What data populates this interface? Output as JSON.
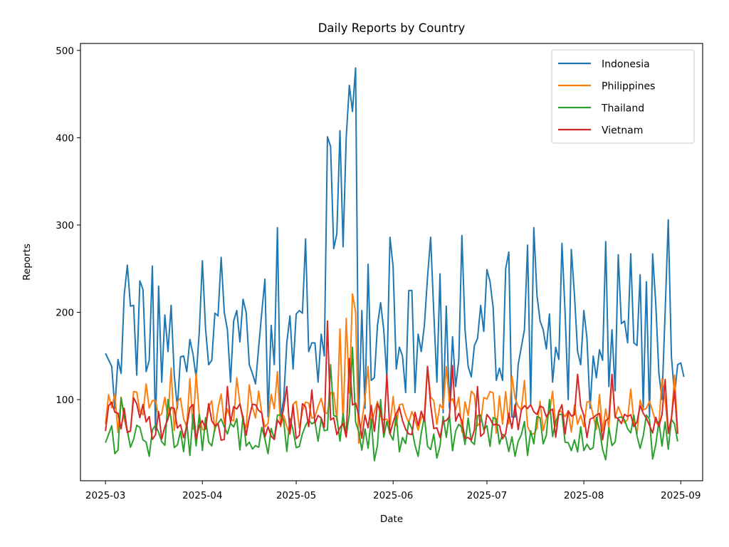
{
  "chart_data": {
    "type": "line",
    "title": "Daily Reports by Country",
    "xlabel": "Date",
    "ylabel": "Reports",
    "x_ticks": [
      "2025-03",
      "2025-04",
      "2025-05",
      "2025-06",
      "2025-07",
      "2025-08",
      "2025-09"
    ],
    "y_ticks": [
      100,
      200,
      300,
      400,
      500
    ],
    "xlim": [
      "2025-02-21",
      "2025-09-08"
    ],
    "ylim": [
      7,
      508
    ],
    "grid": false,
    "legend_position": "top-right",
    "x_start": "2025-03-01",
    "x_end": "2025-08-31",
    "series": [
      {
        "name": "Indonesia",
        "color": "#1f77b4",
        "key_points": [
          [
            "2025-03-01",
            153
          ],
          [
            "2025-03-03",
            138
          ],
          [
            "2025-03-04",
            90
          ],
          [
            "2025-03-05",
            146
          ],
          [
            "2025-03-06",
            130
          ],
          [
            "2025-03-07",
            220
          ],
          [
            "2025-03-08",
            254
          ],
          [
            "2025-03-09",
            207
          ],
          [
            "2025-03-10",
            208
          ],
          [
            "2025-03-11",
            128
          ],
          [
            "2025-03-12",
            236
          ],
          [
            "2025-03-13",
            226
          ],
          [
            "2025-03-14",
            132
          ],
          [
            "2025-03-15",
            145
          ],
          [
            "2025-03-16",
            253
          ],
          [
            "2025-03-17",
            65
          ],
          [
            "2025-03-18",
            230
          ],
          [
            "2025-03-19",
            120
          ],
          [
            "2025-03-20",
            197
          ],
          [
            "2025-03-21",
            155
          ],
          [
            "2025-03-22",
            208
          ],
          [
            "2025-03-23",
            128
          ],
          [
            "2025-03-24",
            90
          ],
          [
            "2025-03-25",
            149
          ],
          [
            "2025-03-26",
            150
          ],
          [
            "2025-03-27",
            132
          ],
          [
            "2025-03-28",
            169
          ],
          [
            "2025-03-29",
            152
          ],
          [
            "2025-03-30",
            125
          ],
          [
            "2025-03-31",
            177
          ],
          [
            "2025-04-01",
            259
          ],
          [
            "2025-04-02",
            182
          ],
          [
            "2025-04-03",
            140
          ],
          [
            "2025-04-04",
            145
          ],
          [
            "2025-04-05",
            199
          ],
          [
            "2025-04-06",
            196
          ],
          [
            "2025-04-07",
            263
          ],
          [
            "2025-04-08",
            200
          ],
          [
            "2025-04-09",
            180
          ],
          [
            "2025-04-10",
            120
          ],
          [
            "2025-04-11",
            190
          ],
          [
            "2025-04-12",
            202
          ],
          [
            "2025-04-13",
            166
          ],
          [
            "2025-04-14",
            215
          ],
          [
            "2025-04-15",
            200
          ],
          [
            "2025-04-16",
            140
          ],
          [
            "2025-04-17",
            130
          ],
          [
            "2025-04-18",
            118
          ],
          [
            "2025-04-19",
            160
          ],
          [
            "2025-04-20",
            200
          ],
          [
            "2025-04-21",
            238
          ],
          [
            "2025-04-22",
            80
          ],
          [
            "2025-04-23",
            185
          ],
          [
            "2025-04-24",
            140
          ],
          [
            "2025-04-25",
            297
          ],
          [
            "2025-04-26",
            80
          ],
          [
            "2025-04-27",
            100
          ],
          [
            "2025-04-28",
            165
          ],
          [
            "2025-04-29",
            196
          ],
          [
            "2025-04-30",
            135
          ],
          [
            "2025-05-01",
            198
          ],
          [
            "2025-05-02",
            202
          ],
          [
            "2025-05-03",
            199
          ],
          [
            "2025-05-04",
            284
          ],
          [
            "2025-05-05",
            155
          ],
          [
            "2025-05-06",
            165
          ],
          [
            "2025-05-07",
            165
          ],
          [
            "2025-05-08",
            120
          ],
          [
            "2025-05-09",
            175
          ],
          [
            "2025-05-10",
            150
          ],
          [
            "2025-05-11",
            401
          ],
          [
            "2025-05-12",
            390
          ],
          [
            "2025-05-13",
            273
          ],
          [
            "2025-05-14",
            290
          ],
          [
            "2025-05-15",
            408
          ],
          [
            "2025-05-16",
            275
          ],
          [
            "2025-05-17",
            400
          ],
          [
            "2025-05-18",
            460
          ],
          [
            "2025-05-19",
            430
          ],
          [
            "2025-05-20",
            480
          ],
          [
            "2025-05-21",
            80
          ],
          [
            "2025-05-22",
            202
          ],
          [
            "2025-05-23",
            90
          ],
          [
            "2025-05-24",
            255
          ],
          [
            "2025-05-25",
            122
          ],
          [
            "2025-05-26",
            125
          ],
          [
            "2025-05-27",
            185
          ],
          [
            "2025-05-28",
            211
          ],
          [
            "2025-05-29",
            180
          ],
          [
            "2025-05-30",
            125
          ],
          [
            "2025-05-31",
            286
          ],
          [
            "2025-06-01",
            252
          ],
          [
            "2025-06-02",
            135
          ],
          [
            "2025-06-03",
            160
          ],
          [
            "2025-06-04",
            150
          ],
          [
            "2025-06-05",
            108
          ],
          [
            "2025-06-06",
            225
          ],
          [
            "2025-06-07",
            225
          ],
          [
            "2025-06-08",
            108
          ],
          [
            "2025-06-09",
            175
          ],
          [
            "2025-06-10",
            155
          ],
          [
            "2025-06-11",
            185
          ],
          [
            "2025-06-12",
            240
          ],
          [
            "2025-06-13",
            286
          ],
          [
            "2025-06-14",
            200
          ],
          [
            "2025-06-15",
            120
          ],
          [
            "2025-06-16",
            244
          ],
          [
            "2025-06-17",
            85
          ],
          [
            "2025-06-18",
            207
          ],
          [
            "2025-06-19",
            90
          ],
          [
            "2025-06-20",
            172
          ],
          [
            "2025-06-21",
            115
          ],
          [
            "2025-06-22",
            145
          ],
          [
            "2025-06-23",
            288
          ],
          [
            "2025-06-24",
            180
          ],
          [
            "2025-06-25",
            138
          ],
          [
            "2025-06-26",
            126
          ],
          [
            "2025-06-27",
            162
          ],
          [
            "2025-06-28",
            170
          ],
          [
            "2025-06-29",
            208
          ],
          [
            "2025-06-30",
            178
          ],
          [
            "2025-07-01",
            249
          ],
          [
            "2025-07-02",
            235
          ],
          [
            "2025-07-03",
            205
          ],
          [
            "2025-07-04",
            122
          ],
          [
            "2025-07-05",
            136
          ],
          [
            "2025-07-06",
            122
          ],
          [
            "2025-07-07",
            250
          ],
          [
            "2025-07-08",
            269
          ],
          [
            "2025-07-09",
            80
          ],
          [
            "2025-07-10",
            80
          ],
          [
            "2025-07-11",
            140
          ],
          [
            "2025-07-12",
            160
          ],
          [
            "2025-07-13",
            180
          ],
          [
            "2025-07-14",
            277
          ],
          [
            "2025-07-15",
            95
          ],
          [
            "2025-07-16",
            297
          ],
          [
            "2025-07-17",
            220
          ],
          [
            "2025-07-18",
            190
          ],
          [
            "2025-07-19",
            180
          ],
          [
            "2025-07-20",
            158
          ],
          [
            "2025-07-21",
            198
          ],
          [
            "2025-07-22",
            120
          ],
          [
            "2025-07-23",
            160
          ],
          [
            "2025-07-24",
            146
          ],
          [
            "2025-07-25",
            279
          ],
          [
            "2025-07-26",
            200
          ],
          [
            "2025-07-27",
            100
          ],
          [
            "2025-07-28",
            272
          ],
          [
            "2025-07-29",
            220
          ],
          [
            "2025-07-30",
            155
          ],
          [
            "2025-07-31",
            140
          ],
          [
            "2025-08-01",
            202
          ],
          [
            "2025-08-02",
            170
          ],
          [
            "2025-08-03",
            90
          ],
          [
            "2025-08-04",
            150
          ],
          [
            "2025-08-05",
            125
          ],
          [
            "2025-08-06",
            157
          ],
          [
            "2025-08-07",
            145
          ],
          [
            "2025-08-08",
            281
          ],
          [
            "2025-08-09",
            115
          ],
          [
            "2025-08-10",
            180
          ],
          [
            "2025-08-11",
            110
          ],
          [
            "2025-08-12",
            266
          ],
          [
            "2025-08-13",
            187
          ],
          [
            "2025-08-14",
            190
          ],
          [
            "2025-08-15",
            165
          ],
          [
            "2025-08-16",
            267
          ],
          [
            "2025-08-17",
            165
          ],
          [
            "2025-08-18",
            162
          ],
          [
            "2025-08-19",
            243
          ],
          [
            "2025-08-20",
            90
          ],
          [
            "2025-08-21",
            235
          ],
          [
            "2025-08-22",
            80
          ],
          [
            "2025-08-23",
            267
          ],
          [
            "2025-08-24",
            210
          ],
          [
            "2025-08-25",
            130
          ],
          [
            "2025-08-26",
            100
          ],
          [
            "2025-08-27",
            200
          ],
          [
            "2025-08-28",
            306
          ],
          [
            "2025-08-29",
            150
          ],
          [
            "2025-08-30",
            105
          ],
          [
            "2025-08-31",
            140
          ],
          [
            "2025-09-01",
            142
          ],
          [
            "2025-09-02",
            126
          ]
        ]
      },
      {
        "name": "Philippines",
        "color": "#ff7f0e",
        "base": 85,
        "spread": 25,
        "seed": 7,
        "peaks": [
          [
            "2025-03-14",
            118
          ],
          [
            "2025-03-22",
            136
          ],
          [
            "2025-03-28",
            124
          ],
          [
            "2025-03-30",
            130
          ],
          [
            "2025-04-12",
            125
          ],
          [
            "2025-04-16",
            117
          ],
          [
            "2025-04-25",
            132
          ],
          [
            "2025-05-05",
            96
          ],
          [
            "2025-05-12",
            108
          ],
          [
            "2025-05-15",
            181
          ],
          [
            "2025-05-17",
            193
          ],
          [
            "2025-05-19",
            221
          ],
          [
            "2025-05-20",
            200
          ],
          [
            "2025-05-21",
            50
          ],
          [
            "2025-05-24",
            138
          ],
          [
            "2025-06-12",
            138
          ],
          [
            "2025-06-18",
            138
          ],
          [
            "2025-07-09",
            127
          ],
          [
            "2025-07-13",
            122
          ],
          [
            "2025-08-10",
            128
          ],
          [
            "2025-08-16",
            112
          ],
          [
            "2025-08-26",
            124
          ],
          [
            "2025-08-30",
            128
          ]
        ]
      },
      {
        "name": "Thailand",
        "color": "#2ca02c",
        "base": 62,
        "spread": 22,
        "seed": 13,
        "peaks": [
          [
            "2025-03-03",
            70
          ],
          [
            "2025-03-04",
            38
          ],
          [
            "2025-03-06",
            102
          ],
          [
            "2025-03-15",
            35
          ],
          [
            "2025-03-21",
            100
          ],
          [
            "2025-03-28",
            36
          ],
          [
            "2025-04-22",
            38
          ],
          [
            "2025-05-12",
            140
          ],
          [
            "2025-05-19",
            160
          ],
          [
            "2025-05-26",
            30
          ],
          [
            "2025-05-28",
            100
          ],
          [
            "2025-06-09",
            35
          ],
          [
            "2025-06-15",
            33
          ],
          [
            "2025-07-10",
            35
          ],
          [
            "2025-07-14",
            36
          ],
          [
            "2025-07-21",
            100
          ],
          [
            "2025-07-30",
            40
          ],
          [
            "2025-08-08",
            31
          ],
          [
            "2025-08-23",
            32
          ]
        ]
      },
      {
        "name": "Vietnam",
        "color": "#d62728",
        "base": 75,
        "spread": 22,
        "seed": 29,
        "peaks": [
          [
            "2025-03-03",
            97
          ],
          [
            "2025-03-10",
            102
          ],
          [
            "2025-04-09",
            115
          ],
          [
            "2025-04-28",
            115
          ],
          [
            "2025-05-06",
            111
          ],
          [
            "2025-05-11",
            190
          ],
          [
            "2025-05-18",
            147
          ],
          [
            "2025-05-21",
            82
          ],
          [
            "2025-05-30",
            129
          ],
          [
            "2025-06-12",
            138
          ],
          [
            "2025-06-20",
            139
          ],
          [
            "2025-06-28",
            115
          ],
          [
            "2025-07-30",
            129
          ],
          [
            "2025-08-10",
            129
          ],
          [
            "2025-08-27",
            123
          ],
          [
            "2025-08-30",
            110
          ]
        ]
      }
    ]
  }
}
